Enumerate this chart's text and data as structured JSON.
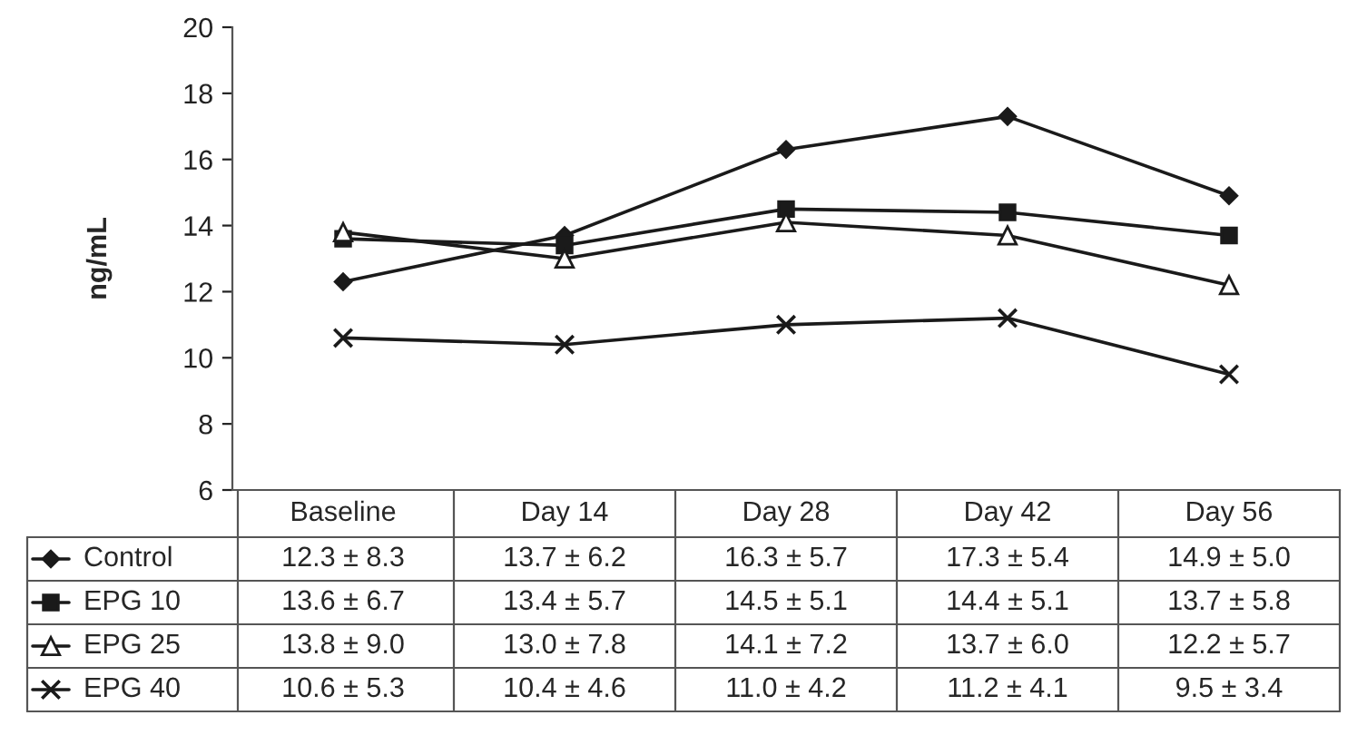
{
  "chart_data": {
    "type": "line",
    "ylabel": "ng/mL",
    "categories": [
      "Baseline",
      "Day 14",
      "Day 28",
      "Day 42",
      "Day 56"
    ],
    "ylim": [
      6,
      20
    ],
    "yticks": [
      6,
      8,
      10,
      12,
      14,
      16,
      18,
      20
    ],
    "grid": false,
    "legend": "bottom",
    "data_labels": true,
    "series": [
      {
        "name": "Control",
        "color": "#1a1a1a",
        "marker": "diamond",
        "values": [
          12.3,
          13.7,
          16.3,
          17.3,
          14.9
        ],
        "value_labels": [
          "12.3 ± 8.3",
          "13.7 ± 6.2",
          "16.3 ± 5.7",
          "17.3 ± 5.4",
          "14.9 ± 5.0"
        ]
      },
      {
        "name": "EPG 10",
        "color": "#1a1a1a",
        "marker": "square",
        "values": [
          13.6,
          13.4,
          14.5,
          14.4,
          13.7
        ],
        "value_labels": [
          "13.6 ± 6.7",
          "13.4 ± 5.7",
          "14.5 ± 5.1",
          "14.4 ± 5.1",
          "13.7 ± 5.8"
        ]
      },
      {
        "name": "EPG 25",
        "color": "#1a1a1a",
        "marker": "triangle",
        "values": [
          13.8,
          13.0,
          14.1,
          13.7,
          12.2
        ],
        "value_labels": [
          "13.8 ± 9.0",
          "13.0 ± 7.8",
          "14.1 ± 7.2",
          "13.7 ± 6.0",
          "12.2 ± 5.7"
        ]
      },
      {
        "name": "EPG 40",
        "color": "#1a1a1a",
        "marker": "cross",
        "values": [
          10.6,
          10.4,
          11.0,
          11.2,
          9.5
        ],
        "value_labels": [
          "10.6 ± 5.3",
          "10.4 ± 4.6",
          "11.0 ± 4.2",
          "11.2 ± 4.1",
          "9.5 ± 3.4"
        ]
      }
    ]
  }
}
